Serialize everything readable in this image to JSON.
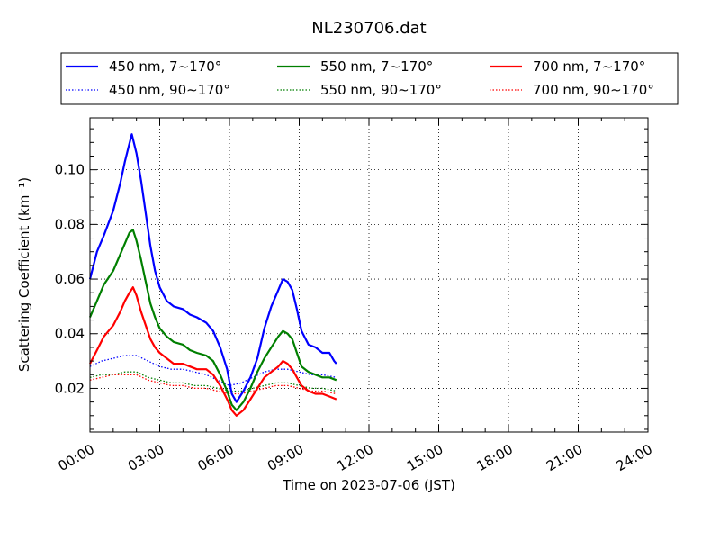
{
  "chart_data": {
    "type": "line",
    "title": "NL230706.dat",
    "xlabel": "Time on 2023-07-06 (JST)",
    "ylabel": "Scattering Coefficient (km⁻¹)",
    "xlim": [
      0,
      24
    ],
    "ylim": [
      0.004,
      0.119
    ],
    "x_tick_labels": [
      "00:00",
      "03:00",
      "06:00",
      "09:00",
      "12:00",
      "15:00",
      "18:00",
      "21:00",
      "24:00"
    ],
    "y_tick_labels": [
      "0.02",
      "0.04",
      "0.06",
      "0.08",
      "0.10"
    ],
    "y_tick_values": [
      0.02,
      0.04,
      0.06,
      0.08,
      0.1
    ],
    "grid": true,
    "legend_position": "top",
    "colors": {
      "blue": "#0000ff",
      "green": "#007f00",
      "red": "#ff0000"
    },
    "series": [
      {
        "name": "450 nm, 7∼170°",
        "color": "#0000ff",
        "style": "solid",
        "x": [
          0.0,
          0.3,
          0.6,
          1.0,
          1.3,
          1.5,
          1.65,
          1.8,
          2.0,
          2.2,
          2.4,
          2.6,
          2.8,
          3.0,
          3.3,
          3.6,
          4.0,
          4.3,
          4.6,
          5.0,
          5.3,
          5.6,
          5.9,
          6.1,
          6.3,
          6.6,
          6.9,
          7.2,
          7.5,
          7.8,
          8.1,
          8.3,
          8.5,
          8.7,
          8.9,
          9.1,
          9.4,
          9.7,
          10.0,
          10.3,
          10.5,
          10.6
        ],
        "y": [
          0.06,
          0.07,
          0.076,
          0.085,
          0.095,
          0.103,
          0.108,
          0.113,
          0.106,
          0.096,
          0.084,
          0.072,
          0.063,
          0.057,
          0.052,
          0.05,
          0.049,
          0.047,
          0.046,
          0.044,
          0.041,
          0.035,
          0.027,
          0.018,
          0.015,
          0.019,
          0.024,
          0.031,
          0.042,
          0.05,
          0.056,
          0.06,
          0.059,
          0.056,
          0.049,
          0.041,
          0.036,
          0.035,
          0.033,
          0.033,
          0.03,
          0.029
        ]
      },
      {
        "name": "450 nm, 90∼170°",
        "color": "#0000ff",
        "style": "dotted",
        "x": [
          0.0,
          0.5,
          1.0,
          1.5,
          2.0,
          2.5,
          3.0,
          3.5,
          4.0,
          4.5,
          5.0,
          5.5,
          6.0,
          6.5,
          7.0,
          7.5,
          8.0,
          8.5,
          9.0,
          9.5,
          10.0,
          10.6
        ],
        "y": [
          0.028,
          0.03,
          0.031,
          0.032,
          0.032,
          0.03,
          0.028,
          0.027,
          0.027,
          0.026,
          0.025,
          0.023,
          0.021,
          0.022,
          0.024,
          0.026,
          0.027,
          0.027,
          0.026,
          0.025,
          0.025,
          0.024
        ]
      },
      {
        "name": "550 nm, 7∼170°",
        "color": "#007f00",
        "style": "solid",
        "x": [
          0.0,
          0.3,
          0.6,
          1.0,
          1.3,
          1.5,
          1.7,
          1.85,
          2.0,
          2.2,
          2.4,
          2.6,
          2.8,
          3.0,
          3.3,
          3.6,
          4.0,
          4.3,
          4.6,
          5.0,
          5.3,
          5.6,
          5.9,
          6.1,
          6.3,
          6.6,
          6.9,
          7.2,
          7.5,
          7.8,
          8.1,
          8.3,
          8.5,
          8.7,
          8.9,
          9.1,
          9.4,
          9.7,
          10.0,
          10.3,
          10.6
        ],
        "y": [
          0.046,
          0.052,
          0.058,
          0.063,
          0.069,
          0.073,
          0.077,
          0.078,
          0.074,
          0.067,
          0.059,
          0.051,
          0.046,
          0.042,
          0.039,
          0.037,
          0.036,
          0.034,
          0.033,
          0.032,
          0.03,
          0.025,
          0.019,
          0.014,
          0.012,
          0.015,
          0.02,
          0.026,
          0.031,
          0.035,
          0.039,
          0.041,
          0.04,
          0.038,
          0.033,
          0.028,
          0.026,
          0.025,
          0.024,
          0.024,
          0.023
        ]
      },
      {
        "name": "550 nm, 90∼170°",
        "color": "#007f00",
        "style": "dotted",
        "x": [
          0.0,
          0.5,
          1.0,
          1.5,
          2.0,
          2.5,
          3.0,
          3.5,
          4.0,
          4.5,
          5.0,
          5.5,
          6.0,
          6.5,
          7.0,
          7.5,
          8.0,
          8.5,
          9.0,
          9.5,
          10.0,
          10.6
        ],
        "y": [
          0.024,
          0.025,
          0.025,
          0.026,
          0.026,
          0.024,
          0.023,
          0.022,
          0.022,
          0.021,
          0.021,
          0.02,
          0.019,
          0.019,
          0.02,
          0.021,
          0.022,
          0.022,
          0.021,
          0.02,
          0.02,
          0.019
        ]
      },
      {
        "name": "700 nm, 7∼170°",
        "color": "#ff0000",
        "style": "solid",
        "x": [
          0.0,
          0.3,
          0.6,
          1.0,
          1.3,
          1.5,
          1.7,
          1.85,
          2.0,
          2.2,
          2.4,
          2.6,
          2.8,
          3.0,
          3.3,
          3.6,
          4.0,
          4.3,
          4.6,
          5.0,
          5.3,
          5.6,
          5.9,
          6.1,
          6.3,
          6.6,
          6.9,
          7.2,
          7.5,
          7.8,
          8.1,
          8.3,
          8.5,
          8.7,
          8.9,
          9.1,
          9.4,
          9.7,
          10.0,
          10.3,
          10.6
        ],
        "y": [
          0.029,
          0.034,
          0.039,
          0.043,
          0.048,
          0.052,
          0.055,
          0.057,
          0.054,
          0.048,
          0.043,
          0.038,
          0.035,
          0.033,
          0.031,
          0.029,
          0.029,
          0.028,
          0.027,
          0.027,
          0.025,
          0.021,
          0.016,
          0.012,
          0.01,
          0.012,
          0.016,
          0.02,
          0.024,
          0.026,
          0.028,
          0.03,
          0.029,
          0.027,
          0.024,
          0.021,
          0.019,
          0.018,
          0.018,
          0.017,
          0.016
        ]
      },
      {
        "name": "700 nm, 90∼170°",
        "color": "#ff0000",
        "style": "dotted",
        "x": [
          0.0,
          0.5,
          1.0,
          1.5,
          2.0,
          2.5,
          3.0,
          3.5,
          4.0,
          4.5,
          5.0,
          5.5,
          6.0,
          6.5,
          7.0,
          7.5,
          8.0,
          8.5,
          9.0,
          9.5,
          10.0,
          10.6
        ],
        "y": [
          0.023,
          0.024,
          0.025,
          0.025,
          0.025,
          0.023,
          0.022,
          0.021,
          0.021,
          0.02,
          0.02,
          0.019,
          0.018,
          0.018,
          0.019,
          0.02,
          0.021,
          0.021,
          0.02,
          0.019,
          0.019,
          0.018
        ]
      }
    ]
  }
}
